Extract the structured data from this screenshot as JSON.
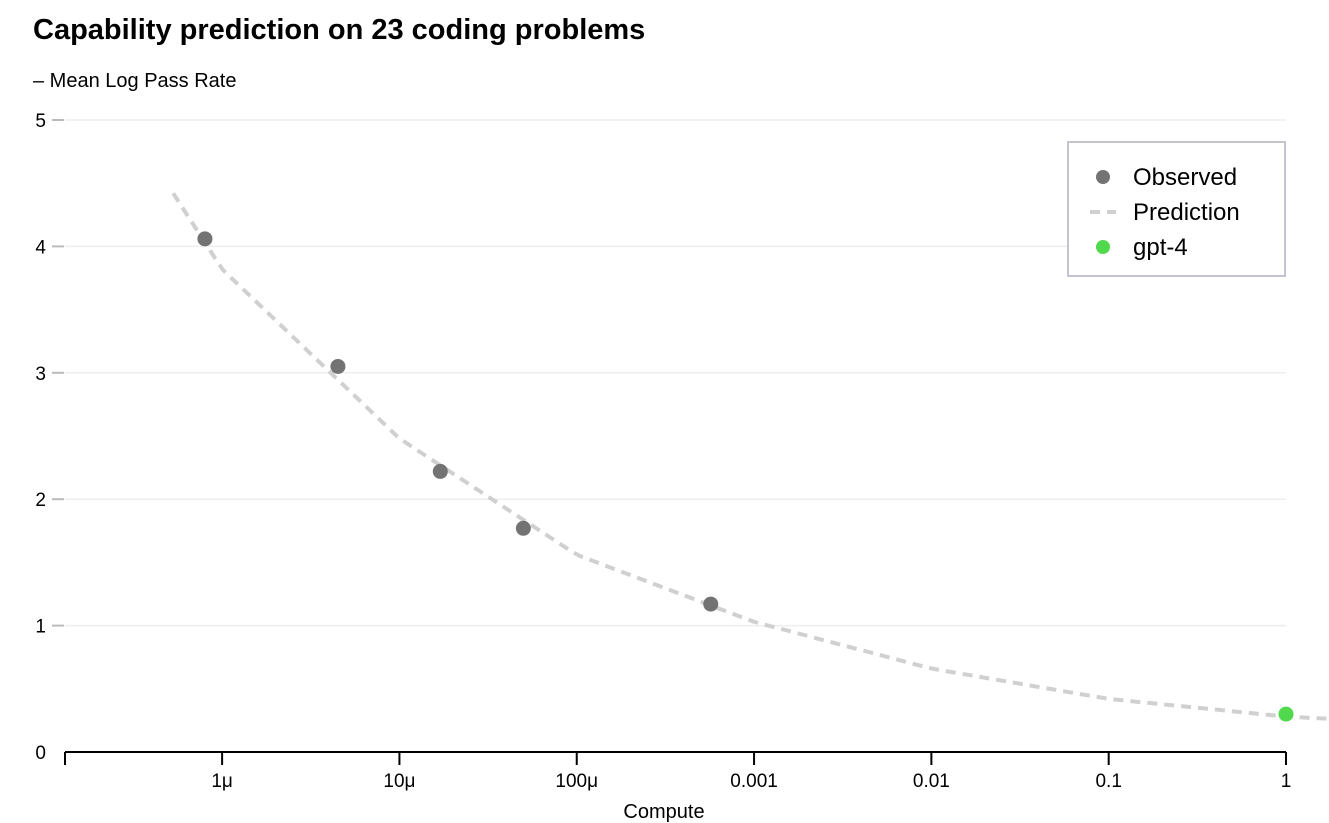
{
  "chart_data": {
    "type": "scatter",
    "title": "Capability prediction on 23 coding problems",
    "ylabel": "– Mean Log Pass Rate",
    "xlabel": "Compute",
    "xscale": "log",
    "xlim": [
      1.3e-07,
      1.0
    ],
    "ylim": [
      0,
      5
    ],
    "grid": "horizontal",
    "legend_position": "top-right",
    "x_ticks": [
      {
        "value": 1e-07,
        "label": ""
      },
      {
        "value": 1e-06,
        "label": "1μ"
      },
      {
        "value": 1e-05,
        "label": "10μ"
      },
      {
        "value": 0.0001,
        "label": "100μ"
      },
      {
        "value": 0.001,
        "label": "0.001"
      },
      {
        "value": 0.01,
        "label": "0.01"
      },
      {
        "value": 0.1,
        "label": "0.1"
      },
      {
        "value": 1,
        "label": "1"
      }
    ],
    "y_ticks": [
      {
        "value": 0,
        "label": "0"
      },
      {
        "value": 1,
        "label": "1"
      },
      {
        "value": 2,
        "label": "2"
      },
      {
        "value": 3,
        "label": "3"
      },
      {
        "value": 4,
        "label": "4"
      },
      {
        "value": 5,
        "label": "5"
      }
    ],
    "series": [
      {
        "name": "Observed",
        "kind": "scatter",
        "color": "#737373",
        "points": [
          {
            "x": 8e-07,
            "y": 4.06
          },
          {
            "x": 4.5e-06,
            "y": 3.05
          },
          {
            "x": 1.7e-05,
            "y": 2.22
          },
          {
            "x": 5e-05,
            "y": 1.77
          },
          {
            "x": 0.00057,
            "y": 1.17
          }
        ]
      },
      {
        "name": "Prediction",
        "kind": "line",
        "style": "dashed",
        "color": "#d0d0d0",
        "points": [
          {
            "x": 5.3e-07,
            "y": 4.42
          },
          {
            "x": 1e-06,
            "y": 3.82
          },
          {
            "x": 1e-05,
            "y": 2.48
          },
          {
            "x": 0.0001,
            "y": 1.56
          },
          {
            "x": 0.001,
            "y": 1.03
          },
          {
            "x": 0.01,
            "y": 0.66
          },
          {
            "x": 0.1,
            "y": 0.42
          },
          {
            "x": 1.0,
            "y": 0.28
          },
          {
            "x": 1.9,
            "y": 0.26
          }
        ]
      },
      {
        "name": "gpt-4",
        "kind": "scatter",
        "color": "#50d94c",
        "points": [
          {
            "x": 1.0,
            "y": 0.3
          }
        ]
      }
    ]
  }
}
